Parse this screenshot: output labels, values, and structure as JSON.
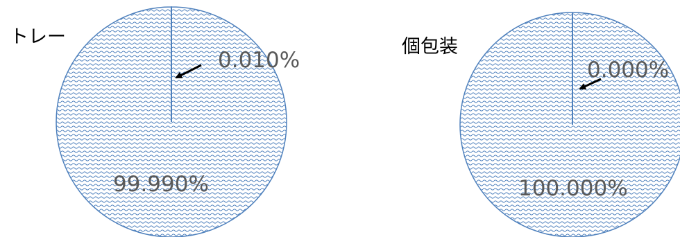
{
  "chart_data": [
    {
      "type": "pie",
      "title": "トレー",
      "slices": [
        {
          "label": "0.010%",
          "value": 0.01
        },
        {
          "label": "99.990%",
          "value": 99.99
        }
      ],
      "pattern": "wave",
      "colors": {
        "fill": "#4F81BD",
        "edge": "#4F81BD",
        "arrow": "#000000",
        "label": "#595959"
      }
    },
    {
      "type": "pie",
      "title": "個包装",
      "slices": [
        {
          "label": "0.000%",
          "value": 0.0
        },
        {
          "label": "100.000%",
          "value": 100.0
        }
      ],
      "pattern": "wave",
      "colors": {
        "fill": "#4F81BD",
        "edge": "#4F81BD",
        "arrow": "#000000",
        "label": "#595959"
      }
    }
  ]
}
